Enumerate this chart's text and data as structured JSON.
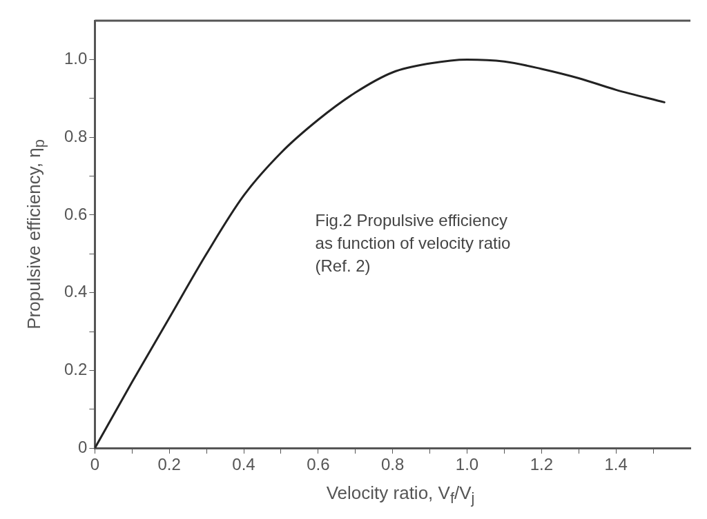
{
  "chart_data": {
    "type": "line",
    "xlabel": "Velocity ratio, V$_{f}$/V$_{j}$",
    "ylabel": "Propulsive efficiency, η$_{p}$",
    "annotations": [
      "Fig.2 Propulsive efficiency\nas function of velocity ratio\n(Ref. 2)"
    ],
    "xlim": [
      0,
      1.6
    ],
    "ylim": [
      0,
      1.1
    ],
    "xticks": [
      0,
      {
        "value": 0.1,
        "label": null
      },
      0.2,
      {
        "value": 0.3,
        "label": null
      },
      0.4,
      {
        "value": 0.5,
        "label": null
      },
      0.6,
      {
        "value": 0.7,
        "label": null
      },
      0.8,
      {
        "value": 0.9,
        "label": null
      },
      {
        "value": 1,
        "label": "1.0"
      },
      {
        "value": 1.1,
        "label": null
      },
      1.2,
      {
        "value": 1.3,
        "label": null
      },
      1.4,
      {
        "value": 1.5,
        "label": null
      }
    ],
    "yticks": [
      0,
      {
        "value": 0.1,
        "label": null
      },
      0.2,
      {
        "value": 0.3,
        "label": null
      },
      0.4,
      {
        "value": 0.5,
        "label": null
      },
      0.6,
      {
        "value": 0.7,
        "label": null
      },
      0.8,
      {
        "value": 0.9,
        "label": null
      },
      {
        "value": 1,
        "label": "1.0"
      }
    ],
    "grid": false,
    "legend": false,
    "marker": "none",
    "line_style": "solid",
    "series": [
      {
        "color": "#222222",
        "x": [
          0,
          0.1,
          0.2,
          0.3,
          0.4,
          0.5,
          0.6,
          0.7,
          0.8,
          0.9,
          1.0,
          1.1,
          1.2,
          1.3,
          1.4,
          1.53
        ],
        "values": [
          0,
          0.17,
          0.335,
          0.5,
          0.65,
          0.76,
          0.845,
          0.915,
          0.967,
          0.99,
          1.0,
          0.995,
          0.976,
          0.952,
          0.922,
          0.89
        ]
      }
    ]
  }
}
